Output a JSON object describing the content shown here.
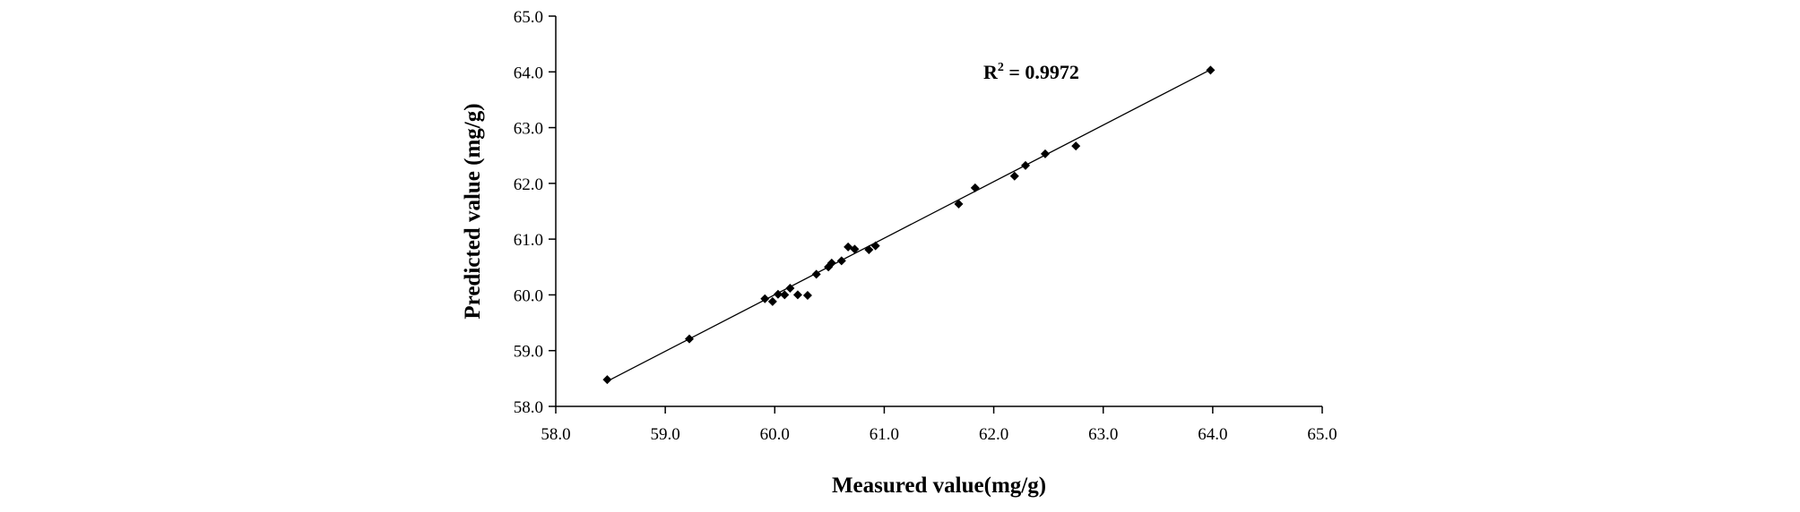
{
  "chart_data": {
    "type": "scatter",
    "title": "",
    "xlabel": "Measured  value(mg/g)",
    "ylabel": "Predicted value (mg/g)",
    "xlim": [
      58.0,
      65.0
    ],
    "ylim": [
      58.0,
      65.0
    ],
    "xticks": [
      "58.0",
      "59.0",
      "60.0",
      "61.0",
      "62.0",
      "63.0",
      "64.0",
      "65.0"
    ],
    "yticks": [
      "58.0",
      "59.0",
      "60.0",
      "61.0",
      "62.0",
      "63.0",
      "64.0",
      "65.0"
    ],
    "grid": false,
    "legend": "none",
    "marker": "diamond",
    "marker_color": "#000000",
    "points": [
      {
        "x": 58.47,
        "y": 58.48
      },
      {
        "x": 59.22,
        "y": 59.21
      },
      {
        "x": 59.91,
        "y": 59.93
      },
      {
        "x": 59.98,
        "y": 59.88
      },
      {
        "x": 60.03,
        "y": 60.01
      },
      {
        "x": 60.09,
        "y": 60.0
      },
      {
        "x": 60.14,
        "y": 60.12
      },
      {
        "x": 60.21,
        "y": 60.0
      },
      {
        "x": 60.3,
        "y": 59.99
      },
      {
        "x": 60.38,
        "y": 60.37
      },
      {
        "x": 60.49,
        "y": 60.5
      },
      {
        "x": 60.52,
        "y": 60.57
      },
      {
        "x": 60.61,
        "y": 60.61
      },
      {
        "x": 60.67,
        "y": 60.86
      },
      {
        "x": 60.73,
        "y": 60.82
      },
      {
        "x": 60.86,
        "y": 60.81
      },
      {
        "x": 60.92,
        "y": 60.88
      },
      {
        "x": 61.68,
        "y": 61.63
      },
      {
        "x": 61.83,
        "y": 61.92
      },
      {
        "x": 62.19,
        "y": 62.13
      },
      {
        "x": 62.29,
        "y": 62.32
      },
      {
        "x": 62.47,
        "y": 62.53
      },
      {
        "x": 62.75,
        "y": 62.67
      },
      {
        "x": 63.98,
        "y": 64.03
      }
    ],
    "trendline": {
      "x": [
        58.47,
        63.98
      ],
      "y": [
        58.45,
        64.04
      ]
    },
    "annotation": {
      "base": "R",
      "superscript": "2",
      "text": " = 0.9972",
      "x": 62.2,
      "y": 64.1
    }
  }
}
